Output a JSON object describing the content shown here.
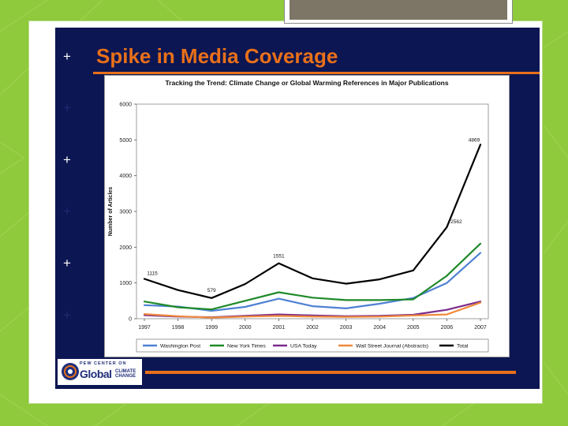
{
  "slide": {
    "title": "Spike in Media Coverage",
    "plus_glyph": "+",
    "logo": {
      "line1": "PEW CENTER",
      "line1b": "ON",
      "line2": "Global",
      "line3a": "CLIMATE",
      "line3b": "CHANGE"
    }
  },
  "colors": {
    "accent": "#e8701a",
    "navy": "#0c1652",
    "green_bg": "#8fca3c"
  },
  "chart_data": {
    "type": "line",
    "title": "Tracking the Trend: Climate Change or Global Warming References in Major Publications",
    "xlabel": "",
    "ylabel": "Number of Articles",
    "ylim": [
      0,
      6000
    ],
    "yticks": [
      0,
      1000,
      2000,
      3000,
      4000,
      5000,
      6000
    ],
    "x": [
      "1997",
      "1998",
      "1999",
      "2000",
      "2001",
      "2002",
      "2003",
      "2004",
      "2005",
      "2006",
      "2007"
    ],
    "series": [
      {
        "name": "Washington Post",
        "color": "#4f81d4",
        "values": [
          380,
          340,
          220,
          330,
          560,
          350,
          290,
          420,
          580,
          1000,
          1840
        ]
      },
      {
        "name": "New York Times",
        "color": "#1f8a2a",
        "values": [
          480,
          320,
          260,
          500,
          740,
          590,
          520,
          520,
          540,
          1200,
          2100
        ]
      },
      {
        "name": "USA Today",
        "color": "#7b2b8c",
        "values": [
          100,
          60,
          40,
          80,
          120,
          90,
          70,
          80,
          110,
          250,
          480
        ]
      },
      {
        "name": "Wall Street Journal (Abstracts)",
        "color": "#f08a3c",
        "values": [
          130,
          70,
          30,
          60,
          80,
          60,
          50,
          60,
          90,
          120,
          450
        ]
      },
      {
        "name": "Total",
        "color": "#000000",
        "values": [
          1115,
          800,
          579,
          970,
          1551,
          1130,
          980,
          1100,
          1350,
          2562,
          4869
        ]
      }
    ],
    "annotations": [
      {
        "index": 0,
        "label": "1115"
      },
      {
        "index": 2,
        "label": "579"
      },
      {
        "index": 4,
        "label": "1551"
      },
      {
        "index": 9,
        "label": "2562"
      },
      {
        "index": 10,
        "label": "4869"
      }
    ],
    "legend_position": "bottom"
  }
}
